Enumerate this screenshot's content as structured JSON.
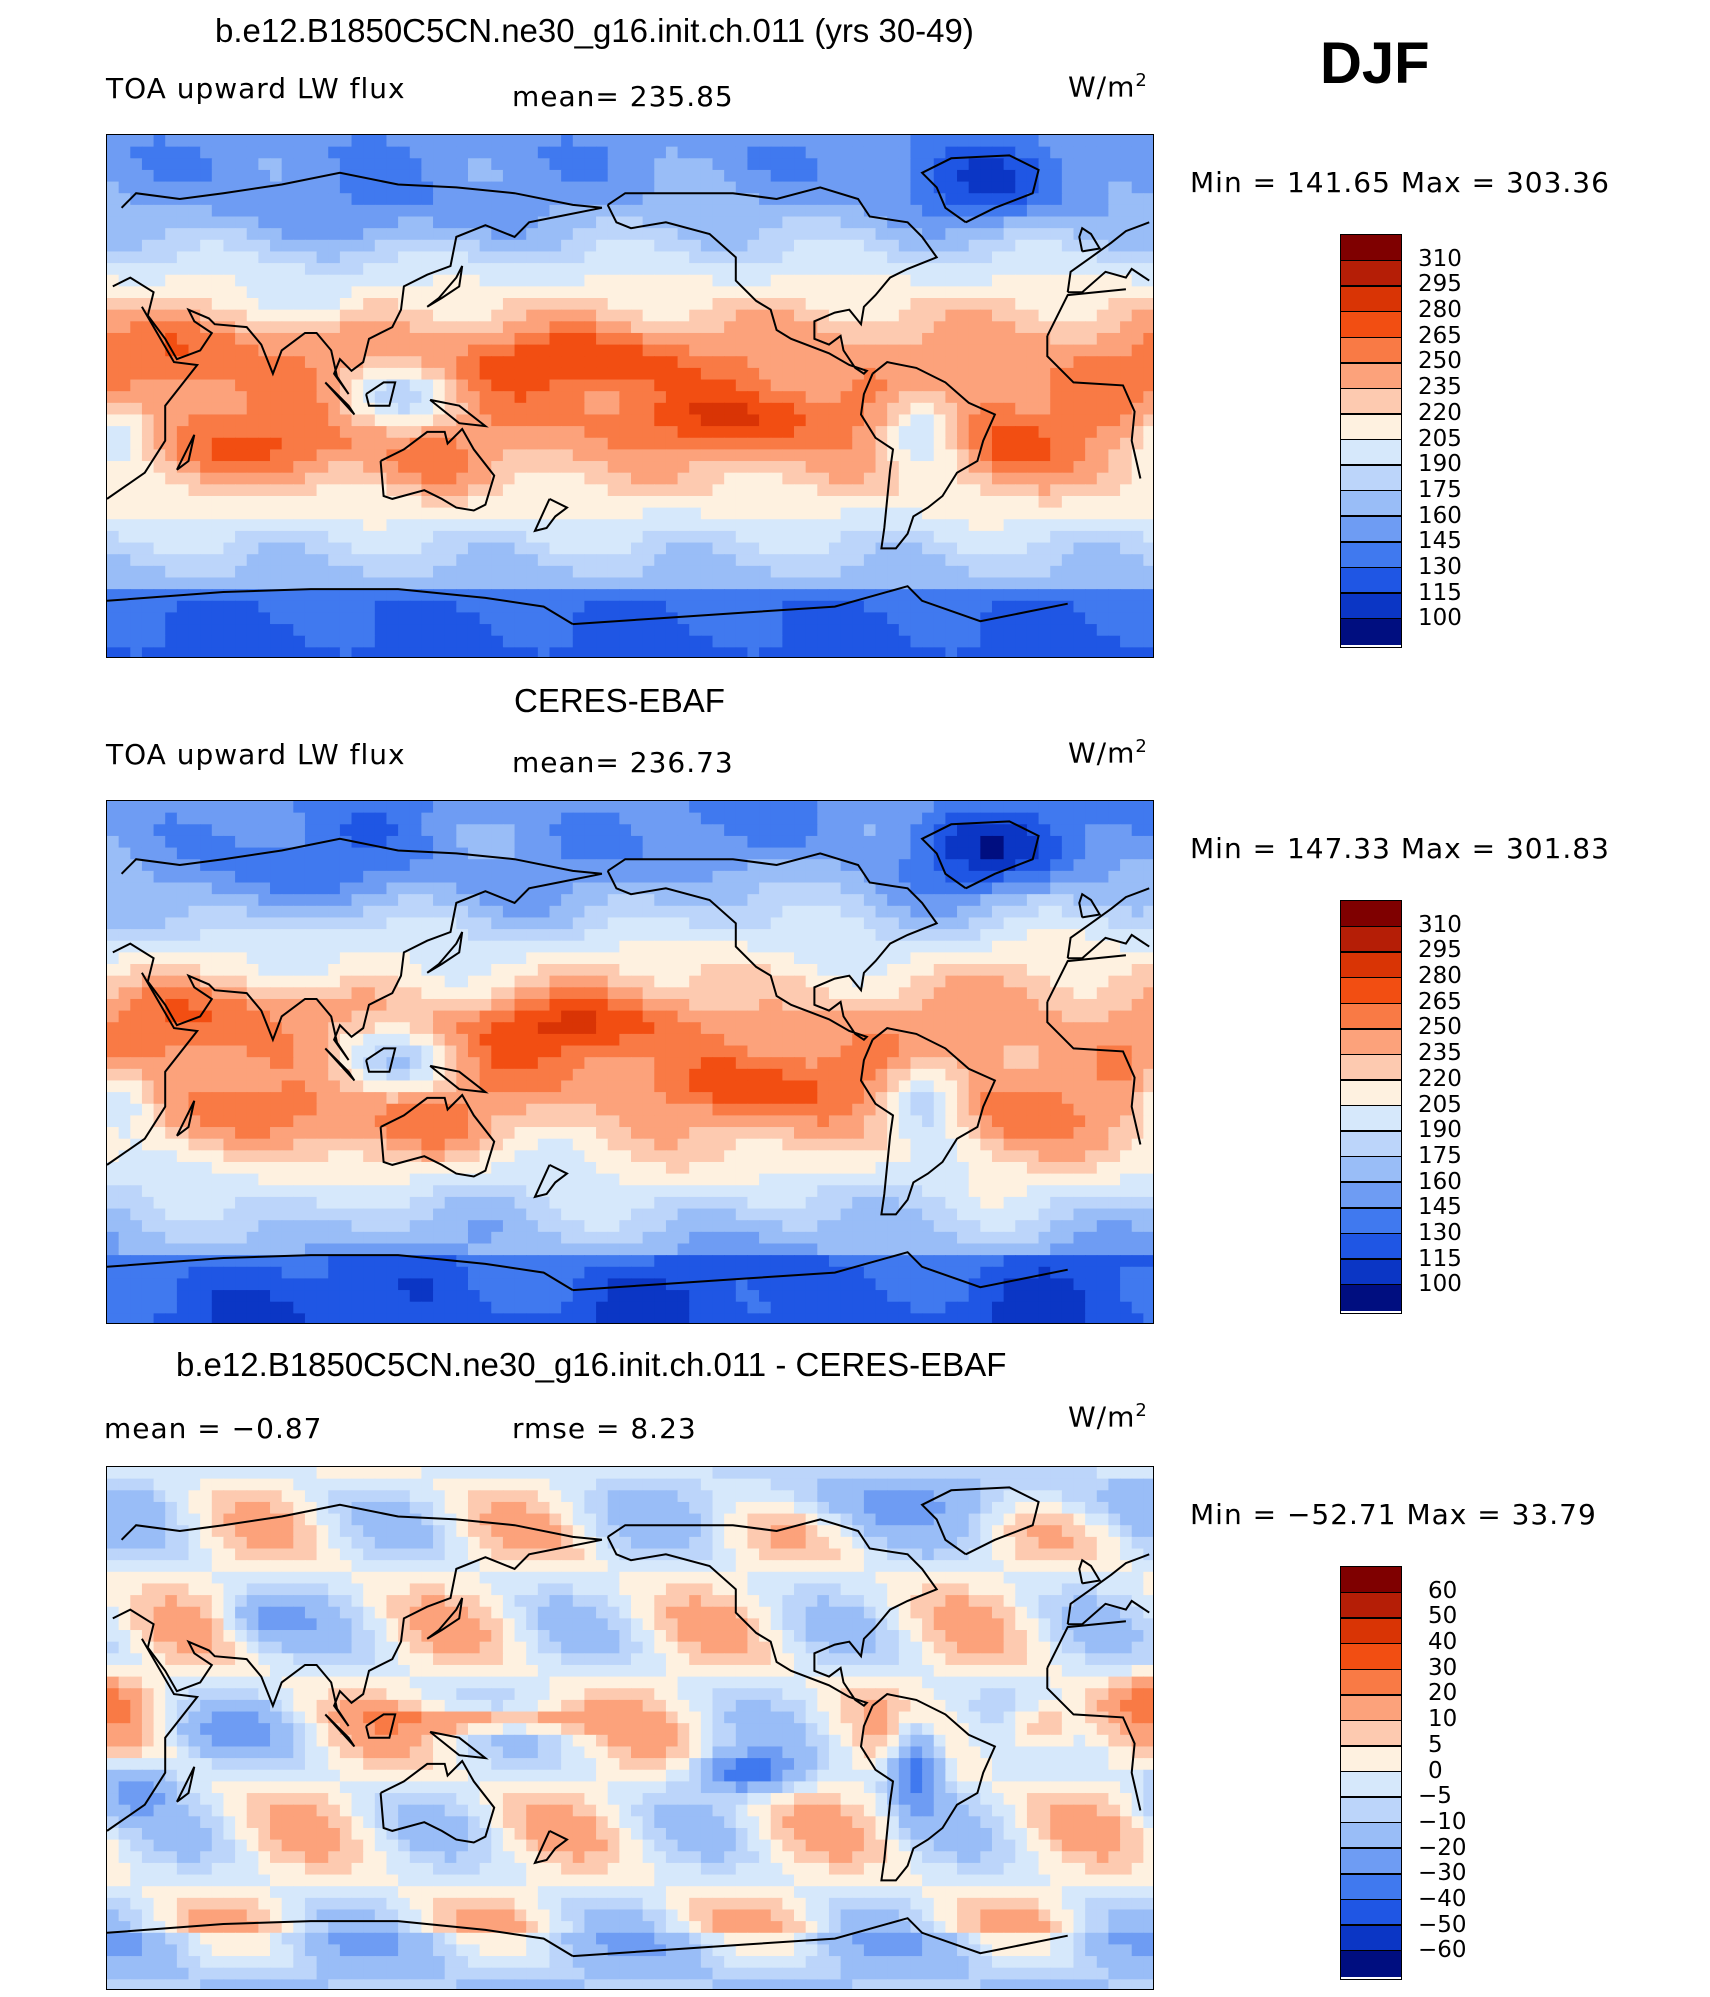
{
  "season": "DJF",
  "panels": [
    {
      "id": "model",
      "title": "b.e12.B1850C5CN.ne30_g16.init.ch.011 (yrs 30-49)",
      "left_label": "TOA upward LW flux",
      "center_label": "mean=  235.85",
      "units": "W/m",
      "units_sup": "2",
      "minmax": "Min  =  141.65  Max  =  303.36",
      "kind": "abs",
      "colorbar": {
        "labels": [
          "310",
          "295",
          "280",
          "265",
          "250",
          "235",
          "220",
          "205",
          "190",
          "175",
          "160",
          "145",
          "130",
          "115",
          "100"
        ],
        "colors": [
          "#7f0000",
          "#b51e06",
          "#d93405",
          "#f24e12",
          "#f97a45",
          "#fca27b",
          "#fdcab0",
          "#fef1e0",
          "#d6e8fb",
          "#bcd5fa",
          "#99bdf7",
          "#6e9cf3",
          "#4079ef",
          "#1f56e4",
          "#0b36c5",
          "#000e80"
        ]
      }
    },
    {
      "id": "obs",
      "title": "CERES-EBAF",
      "left_label": "TOA upward LW flux",
      "center_label": "mean=  236.73",
      "units": "W/m",
      "units_sup": "2",
      "minmax": "Min  =  147.33  Max  =  301.83",
      "kind": "abs",
      "colorbar": {
        "labels": [
          "310",
          "295",
          "280",
          "265",
          "250",
          "235",
          "220",
          "205",
          "190",
          "175",
          "160",
          "145",
          "130",
          "115",
          "100"
        ],
        "colors": [
          "#7f0000",
          "#b51e06",
          "#d93405",
          "#f24e12",
          "#f97a45",
          "#fca27b",
          "#fdcab0",
          "#fef1e0",
          "#d6e8fb",
          "#bcd5fa",
          "#99bdf7",
          "#6e9cf3",
          "#4079ef",
          "#1f56e4",
          "#0b36c5",
          "#000e80"
        ]
      }
    },
    {
      "id": "diff",
      "title": "b.e12.B1850C5CN.ne30_g16.init.ch.011 - CERES-EBAF",
      "left_label": "mean  =    −0.87",
      "center_label": "rmse  =     8.23",
      "units": "W/m",
      "units_sup": "2",
      "minmax": "Min  =  −52.71  Max  =    33.79",
      "kind": "diff",
      "colorbar": {
        "labels": [
          "60",
          "50",
          "40",
          "30",
          "20",
          "10",
          "5",
          "0",
          "−5",
          "−10",
          "−20",
          "−30",
          "−40",
          "−50",
          "−60"
        ],
        "colors": [
          "#7f0000",
          "#b51e06",
          "#d93405",
          "#f24e12",
          "#f97a45",
          "#fca27b",
          "#fdcab0",
          "#fef1e0",
          "#d6e8fb",
          "#bcd5fa",
          "#99bdf7",
          "#6e9cf3",
          "#4079ef",
          "#1f56e4",
          "#0b36c5",
          "#000e80"
        ]
      }
    }
  ]
}
